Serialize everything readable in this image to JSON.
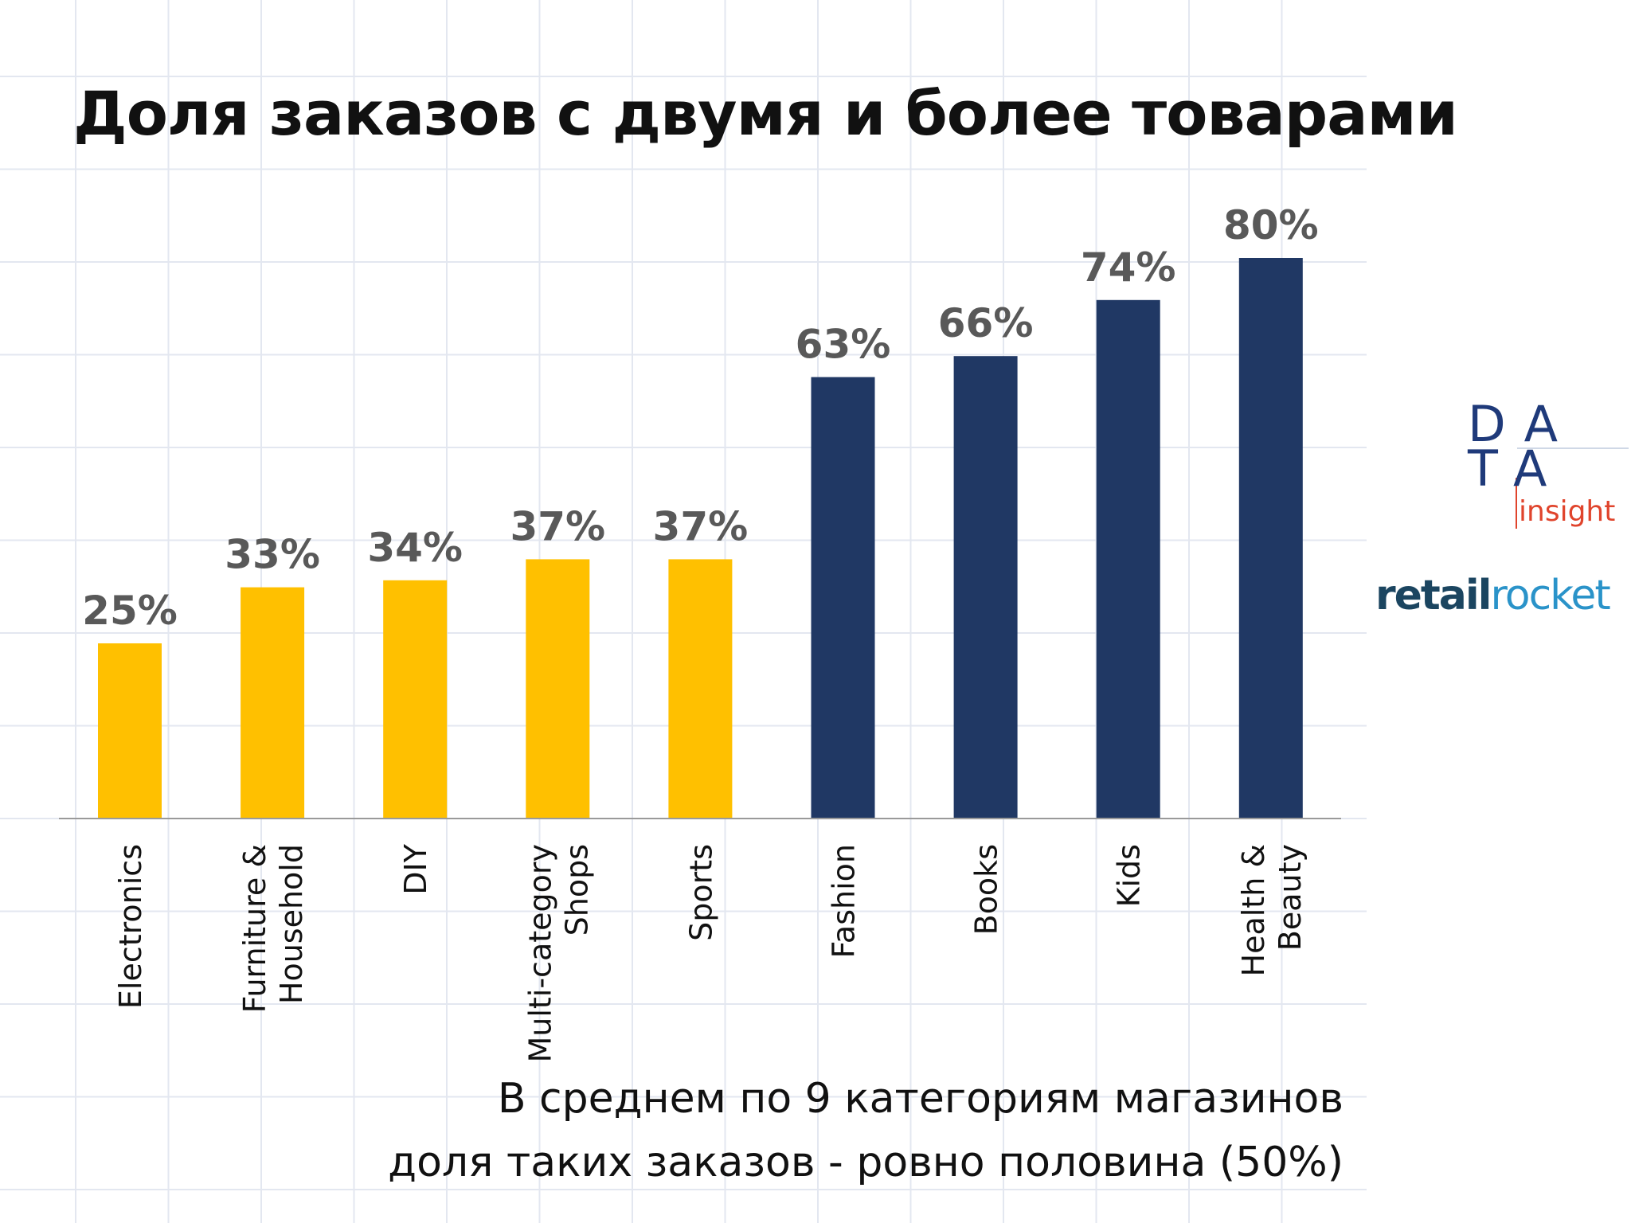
{
  "slide": {
    "title": "Доля заказов с двумя и более товарами",
    "note_line1": "В среднем по 9 категориям магазинов",
    "note_line2": "доля таких заказов - ровно половина (50%)"
  },
  "logos": {
    "data_row1": "DA",
    "data_row2": "TA",
    "data_sub": "insight",
    "rr_part1": "retail",
    "rr_part2": "rocket"
  },
  "chart_data": {
    "type": "bar",
    "title": "Доля заказов с двумя и более товарами",
    "categories": [
      "Electronics",
      "Furniture & Household",
      "DIY",
      "Multi-category Shops",
      "Sports",
      "Fashion",
      "Books",
      "Kids",
      "Health & Beauty"
    ],
    "category_lines": [
      [
        "Electronics"
      ],
      [
        "Furniture &",
        "Household"
      ],
      [
        "DIY"
      ],
      [
        "Multi-category",
        "Shops"
      ],
      [
        "Sports"
      ],
      [
        "Fashion"
      ],
      [
        "Books"
      ],
      [
        "Kids"
      ],
      [
        "Health &",
        "Beauty"
      ]
    ],
    "values": [
      25,
      33,
      34,
      37,
      37,
      63,
      66,
      74,
      80
    ],
    "data_labels": [
      "25%",
      "33%",
      "34%",
      "37%",
      "37%",
      "63%",
      "66%",
      "74%",
      "80%"
    ],
    "unit": "%",
    "ylim": [
      0,
      100
    ],
    "colors": [
      "#FFC000",
      "#FFC000",
      "#FFC000",
      "#FFC000",
      "#FFC000",
      "#203864",
      "#203864",
      "#203864",
      "#203864"
    ],
    "legend": "none",
    "grid": false,
    "xlabel": "",
    "ylabel": ""
  }
}
